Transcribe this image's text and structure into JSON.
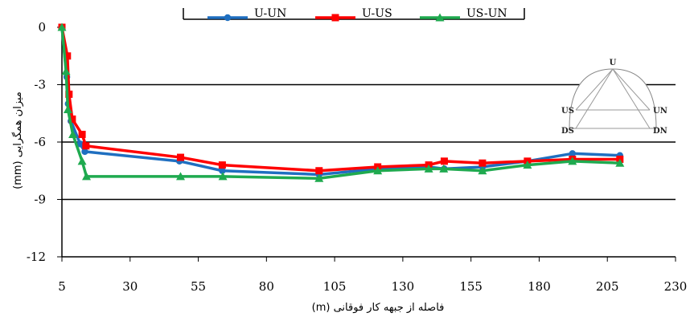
{
  "chart_data": {
    "type": "line",
    "xlabel": "فاصله از جبهه کار فوقانی (m)",
    "ylabel": "میزان همگرایی (mm)",
    "xlim": [
      5,
      230
    ],
    "ylim": [
      -12,
      0
    ],
    "xticks": [
      5,
      30,
      55,
      80,
      105,
      130,
      155,
      180,
      205,
      230
    ],
    "yticks": [
      0,
      -3,
      -6,
      -9,
      -12
    ],
    "grid": "horizontal",
    "legend_position": "top",
    "series": [
      {
        "name": "U-UN",
        "color": "#1f6fc0",
        "marker": "circle",
        "x": [
          5,
          6.8,
          7.3,
          8.3,
          11.7,
          13.4,
          48.1,
          63.8,
          99.3,
          120.8,
          139.5,
          145.2,
          159.2,
          175.7,
          192.2,
          209.6
        ],
        "y": [
          0,
          -2.6,
          -4.0,
          -4.9,
          -6.1,
          -6.5,
          -7.0,
          -7.5,
          -7.7,
          -7.4,
          -7.3,
          -7.4,
          -7.3,
          -7.0,
          -6.6,
          -6.7
        ]
      },
      {
        "name": "U-US",
        "color": "#ff0000",
        "marker": "square",
        "x": [
          5,
          7.0,
          7.6,
          8.8,
          12.4,
          13.8,
          48.5,
          63.8,
          99.3,
          120.8,
          139.5,
          145.2,
          159.2,
          175.7,
          192.2,
          209.6
        ],
        "y": [
          0,
          -1.5,
          -3.5,
          -4.8,
          -5.6,
          -6.2,
          -6.8,
          -7.2,
          -7.5,
          -7.3,
          -7.2,
          -7.0,
          -7.1,
          -7.0,
          -6.9,
          -6.9
        ]
      },
      {
        "name": "US-UN",
        "color": "#1faa4f",
        "marker": "triangle",
        "x": [
          5,
          6.5,
          7.2,
          9.0,
          12.4,
          14.0,
          48.5,
          64.0,
          99.3,
          120.8,
          139.5,
          145.0,
          159.2,
          175.7,
          192.2,
          209.6
        ],
        "y": [
          0,
          -2.3,
          -4.3,
          -5.6,
          -7.0,
          -7.8,
          -7.8,
          -7.8,
          -7.9,
          -7.5,
          -7.4,
          -7.4,
          -7.5,
          -7.2,
          -7.0,
          -7.1
        ]
      }
    ]
  },
  "inset": {
    "labels": {
      "top": "U",
      "left_upper": "US",
      "right_upper": "UN",
      "left_lower": "DS",
      "right_lower": "DN"
    }
  }
}
